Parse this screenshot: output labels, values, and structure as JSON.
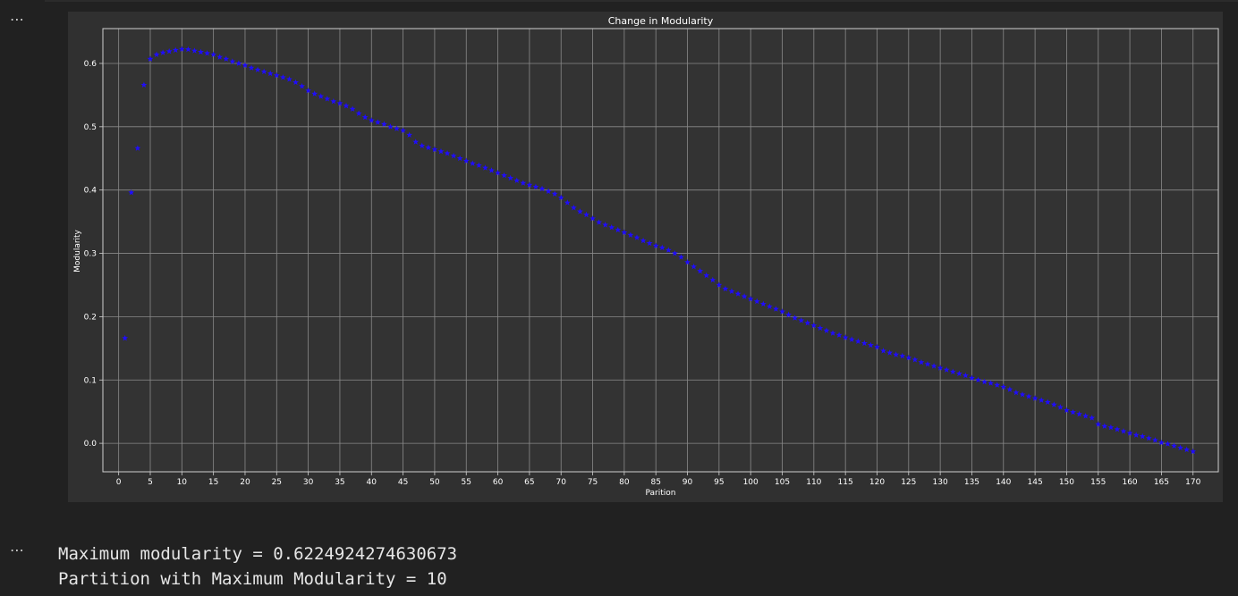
{
  "cells": [
    {
      "menu_glyph": "⋯"
    },
    {
      "menu_glyph": "⋯"
    }
  ],
  "output": {
    "line1": "Maximum modularity = 0.6224924274630673",
    "line2": "Partition with Maximum Modularity = 10"
  },
  "colors": {
    "page_bg": "#212121",
    "figure_bg": "#303030",
    "plot_bg": "#333333",
    "grid": "#8a8a8a",
    "text": "#ffffff",
    "marker": "#1f0cff"
  },
  "chart_data": {
    "type": "scatter",
    "title": "Change in Modularity",
    "xlabel": "Parition",
    "ylabel": "Modularity",
    "xlim": [
      -2.5,
      174.0
    ],
    "ylim": [
      -0.045,
      0.655
    ],
    "xticks": [
      0,
      5,
      10,
      15,
      20,
      25,
      30,
      35,
      40,
      45,
      50,
      55,
      60,
      65,
      70,
      75,
      80,
      85,
      90,
      95,
      100,
      105,
      110,
      115,
      120,
      125,
      130,
      135,
      140,
      145,
      150,
      155,
      160,
      165,
      170
    ],
    "yticks": [
      0.0,
      0.1,
      0.2,
      0.3,
      0.4,
      0.5,
      0.6
    ],
    "ytick_labels": [
      "0.0",
      "0.1",
      "0.2",
      "0.3",
      "0.4",
      "0.5",
      "0.6"
    ],
    "grid": true,
    "marker": "*",
    "series": [
      {
        "name": "",
        "x": [
          1,
          2,
          3,
          4,
          5,
          6,
          7,
          8,
          9,
          10,
          11,
          12,
          13,
          14,
          15,
          16,
          17,
          18,
          19,
          20,
          21,
          22,
          23,
          24,
          25,
          26,
          27,
          28,
          29,
          30,
          31,
          32,
          33,
          34,
          35,
          36,
          37,
          38,
          39,
          40,
          41,
          42,
          43,
          44,
          45,
          46,
          47,
          48,
          49,
          50,
          51,
          52,
          53,
          54,
          55,
          56,
          57,
          58,
          59,
          60,
          61,
          62,
          63,
          64,
          65,
          66,
          67,
          68,
          69,
          70,
          71,
          72,
          73,
          74,
          75,
          76,
          77,
          78,
          79,
          80,
          81,
          82,
          83,
          84,
          85,
          86,
          87,
          88,
          89,
          90,
          91,
          92,
          93,
          94,
          95,
          96,
          97,
          98,
          99,
          100,
          101,
          102,
          103,
          104,
          105,
          106,
          107,
          108,
          109,
          110,
          111,
          112,
          113,
          114,
          115,
          116,
          117,
          118,
          119,
          120,
          121,
          122,
          123,
          124,
          125,
          126,
          127,
          128,
          129,
          130,
          131,
          132,
          133,
          134,
          135,
          136,
          137,
          138,
          139,
          140,
          141,
          142,
          143,
          144,
          145,
          146,
          147,
          148,
          149,
          150,
          151,
          152,
          153,
          154,
          155,
          156,
          157,
          158,
          159,
          160,
          161,
          162,
          163,
          164,
          165,
          166,
          167,
          168,
          169,
          170
        ],
        "y": [
          0.166,
          0.396,
          0.466,
          0.566,
          0.607,
          0.614,
          0.617,
          0.619,
          0.621,
          0.6225,
          0.622,
          0.62,
          0.618,
          0.616,
          0.614,
          0.61,
          0.607,
          0.603,
          0.6,
          0.597,
          0.593,
          0.59,
          0.587,
          0.584,
          0.581,
          0.578,
          0.575,
          0.57,
          0.564,
          0.557,
          0.552,
          0.548,
          0.544,
          0.54,
          0.537,
          0.533,
          0.528,
          0.521,
          0.515,
          0.51,
          0.507,
          0.504,
          0.5,
          0.497,
          0.494,
          0.487,
          0.476,
          0.47,
          0.467,
          0.464,
          0.461,
          0.458,
          0.454,
          0.45,
          0.446,
          0.442,
          0.439,
          0.435,
          0.431,
          0.427,
          0.423,
          0.419,
          0.415,
          0.411,
          0.408,
          0.405,
          0.402,
          0.398,
          0.394,
          0.388,
          0.38,
          0.372,
          0.366,
          0.361,
          0.355,
          0.349,
          0.345,
          0.341,
          0.337,
          0.333,
          0.329,
          0.325,
          0.32,
          0.316,
          0.312,
          0.309,
          0.305,
          0.3,
          0.294,
          0.286,
          0.279,
          0.272,
          0.265,
          0.258,
          0.25,
          0.244,
          0.24,
          0.236,
          0.232,
          0.228,
          0.224,
          0.22,
          0.216,
          0.212,
          0.208,
          0.203,
          0.198,
          0.194,
          0.19,
          0.186,
          0.182,
          0.178,
          0.174,
          0.171,
          0.167,
          0.164,
          0.161,
          0.158,
          0.155,
          0.152,
          0.146,
          0.143,
          0.14,
          0.138,
          0.135,
          0.132,
          0.128,
          0.125,
          0.122,
          0.119,
          0.116,
          0.113,
          0.11,
          0.107,
          0.103,
          0.1,
          0.097,
          0.095,
          0.092,
          0.089,
          0.085,
          0.08,
          0.077,
          0.074,
          0.071,
          0.068,
          0.065,
          0.061,
          0.057,
          0.052,
          0.049,
          0.046,
          0.043,
          0.04,
          0.03,
          0.027,
          0.025,
          0.022,
          0.019,
          0.016,
          0.013,
          0.011,
          0.008,
          0.005,
          0.001,
          -0.001,
          -0.004,
          -0.007,
          -0.01,
          -0.013
        ]
      }
    ]
  }
}
